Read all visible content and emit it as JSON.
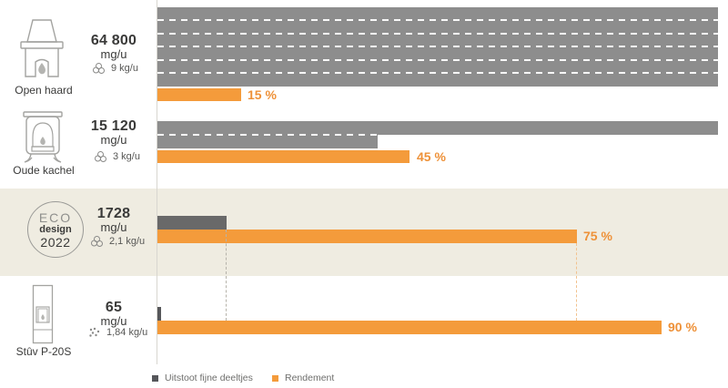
{
  "colors": {
    "orange": "#f49b3b",
    "orange_text": "#ee9138",
    "gray_bar_light": "#8d8d8d",
    "gray_bar_dark": "#696969",
    "beige_band": "#efece1"
  },
  "rows": [
    {
      "label": "Open haard",
      "emission_value": "64 800",
      "emission_unit": "mg/u",
      "consumption": "9 kg/u",
      "efficiency_pct": 15,
      "efficiency_label": "15 %"
    },
    {
      "label": "Oude kachel",
      "emission_value": "15 120",
      "emission_unit": "mg/u",
      "consumption": "3 kg/u",
      "efficiency_pct": 45,
      "efficiency_label": "45 %"
    },
    {
      "label": "ECO design 2022",
      "badge": {
        "line1": "ECO",
        "line2": "design",
        "line3": "2022"
      },
      "emission_value": "1728",
      "emission_unit": "mg/u",
      "consumption": "2,1 kg/u",
      "efficiency_pct": 75,
      "efficiency_label": "75 %"
    },
    {
      "label": "Stûv P-20S",
      "emission_value": "65",
      "emission_unit": "mg/u",
      "consumption": "1,84 kg/u",
      "efficiency_pct": 90,
      "efficiency_label": "90 %"
    }
  ],
  "legend": {
    "emissions": "Uitstoot fijne deeltjes",
    "efficiency": "Rendement"
  },
  "chart_data": {
    "type": "bar",
    "orientation": "horizontal",
    "categories": [
      "Open haard",
      "Oude kachel",
      "ECO design 2022",
      "Stûv P-20S"
    ],
    "series": [
      {
        "name": "Uitstoot fijne deeltjes",
        "unit": "mg/u",
        "values": [
          64800,
          15120,
          1728,
          65
        ],
        "color": "#8d8d8d"
      },
      {
        "name": "Rendement",
        "unit": "%",
        "values": [
          15,
          45,
          75,
          90
        ],
        "color": "#f49b3b"
      },
      {
        "name": "kg/u",
        "unit": "kg/u",
        "values": [
          9,
          3,
          2.1,
          1.84
        ]
      }
    ],
    "percent_axis_range": [
      0,
      100
    ],
    "legend_position": "bottom-left",
    "grid": false,
    "notes": "emission bars exceed chart width and are shown clipped/wrapped with white dashed continuation lines; dashed connectors compare ECO design 2022 endpoints with Stûv P-20S row"
  }
}
